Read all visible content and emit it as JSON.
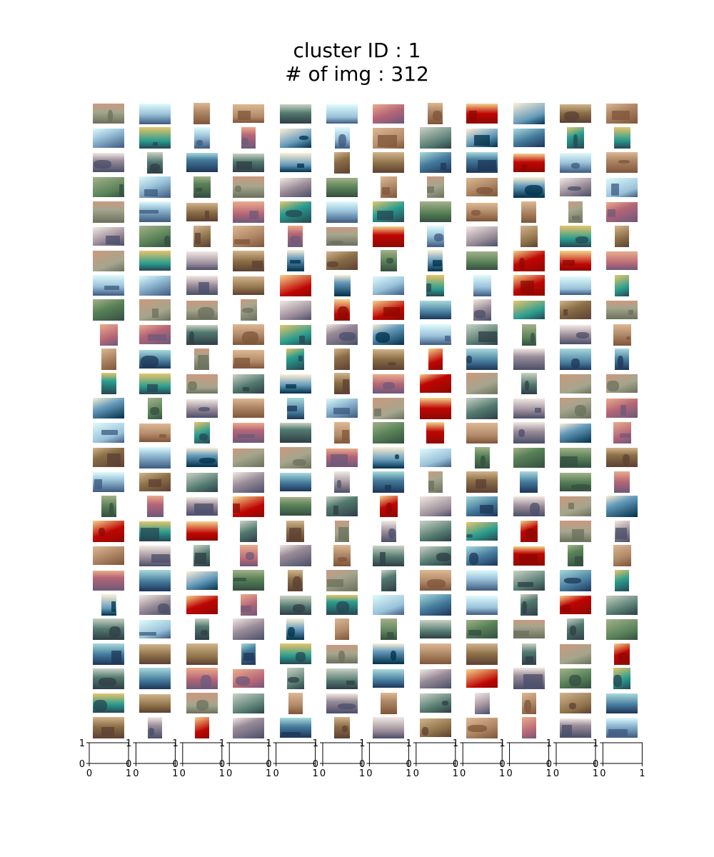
{
  "figure": {
    "title_line1": "cluster ID : 1",
    "title_line2": "# of img : 312"
  },
  "thumbnail_grid": {
    "columns": 12,
    "rows": 26,
    "image_count": 312,
    "content": "photo thumbnails (buildings, ships, animals, landscapes, doors, flowers)"
  },
  "empty_axes": {
    "count": 12,
    "x_ticks": [
      "0",
      "1"
    ],
    "y_ticks": [
      "0",
      "1"
    ],
    "xlim": [
      0,
      1
    ],
    "ylim": [
      0,
      1
    ]
  },
  "colors": {
    "background": "#ffffff",
    "axis": "#000000"
  }
}
